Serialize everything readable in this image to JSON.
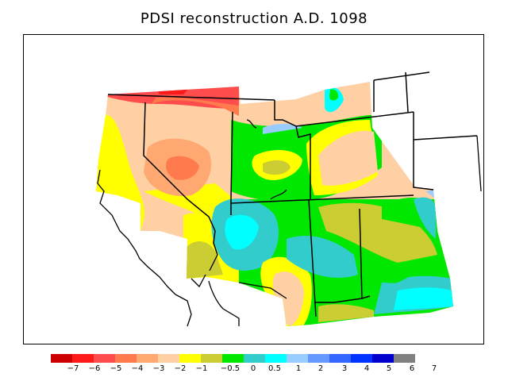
{
  "title": "PDSI reconstruction A.D. 1098",
  "legend": {
    "colors": [
      "#cc0000",
      "#ff1a1a",
      "#ff4d4d",
      "#ff7a4d",
      "#ffa872",
      "#ffd0a4",
      "#ffff00",
      "#cccc33",
      "#00e800",
      "#33cccc",
      "#00ffff",
      "#99ccff",
      "#6699ff",
      "#3366ff",
      "#0033ff",
      "#0000cc",
      "#808080"
    ],
    "labels": [
      "−7",
      "−6",
      "−5",
      "−4",
      "−3",
      "−2",
      "−1",
      "−0.5",
      "0",
      "0.5",
      "1",
      "2",
      "3",
      "4",
      "5",
      "6",
      "7"
    ]
  }
}
